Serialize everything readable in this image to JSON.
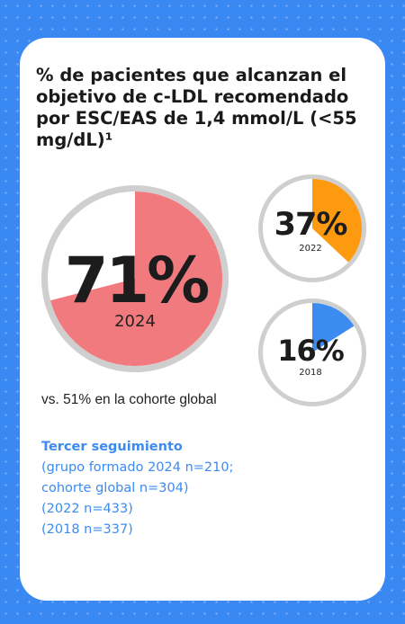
{
  "title": "% de pacientes que alcanzan el objetivo de c-LDL recomendado por ESC/EAS de 1,4 mmol/L (<55 mg/dL)¹",
  "chart_data": {
    "type": "pie",
    "title": "% de pacientes que alcanzan el objetivo de c-LDL recomendado por ESC/EAS de 1,4 mmol/L (<55 mg/dL)¹",
    "series": [
      {
        "label": "2024",
        "percent": 71,
        "value_text": "71%",
        "color": "#f07a7e"
      },
      {
        "label": "2022",
        "percent": 37,
        "value_text": "37%",
        "color": "#fd9a10"
      },
      {
        "label": "2018",
        "percent": 16,
        "value_text": "16%",
        "color": "#3b8bf0"
      }
    ],
    "remainder_color": "#ffffff",
    "ring_color": "#cfcfcf"
  },
  "comparison": "vs. 51% en la cohorte global",
  "note": {
    "heading": "Tercer seguimiento",
    "lines": [
      " (grupo formado 2024 n=210;",
      "cohorte global n=304)",
      " (2022 n=433)",
      " (2018 n=337)"
    ]
  }
}
